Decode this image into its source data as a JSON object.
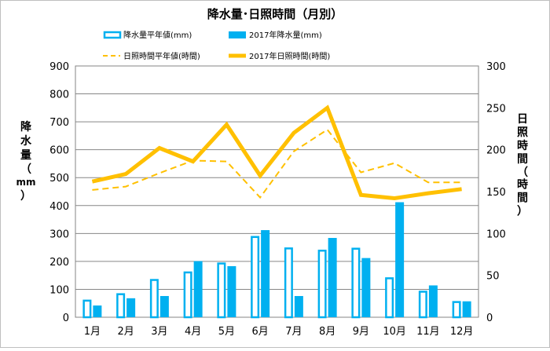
{
  "chart_data": {
    "type": "bar+line",
    "title": "降水量･日照時間（月別）",
    "categories": [
      "1月",
      "2月",
      "3月",
      "4月",
      "5月",
      "6月",
      "7月",
      "8月",
      "9月",
      "10月",
      "11月",
      "12月"
    ],
    "left_axis": {
      "label": "降水量（mm）",
      "label_parts": [
        "降",
        "水",
        "量",
        "（",
        "mm",
        "）"
      ],
      "ylim": [
        0,
        900
      ],
      "ticks": [
        0,
        100,
        200,
        300,
        400,
        500,
        600,
        700,
        800,
        900
      ]
    },
    "right_axis": {
      "label": "日照時間（時間）",
      "label_parts": [
        "日",
        "照",
        "時",
        "間",
        "（",
        "時",
        "間",
        "）"
      ],
      "ylim": [
        0,
        300
      ],
      "ticks": [
        0,
        50,
        100,
        150,
        200,
        250,
        300
      ]
    },
    "series": [
      {
        "name": "降水量平年値(mm)",
        "kind": "bar-outline",
        "axis": "left",
        "color": "#00b0f0",
        "values": [
          63,
          86,
          137,
          164,
          196,
          291,
          250,
          242,
          249,
          143,
          95,
          58
        ]
      },
      {
        "name": "2017年降水量(mm)",
        "kind": "bar",
        "axis": "left",
        "color": "#00b0f0",
        "values": [
          42,
          68,
          76,
          201,
          183,
          312,
          76,
          284,
          212,
          412,
          114,
          57
        ]
      },
      {
        "name": "日照時間平年値(時間)",
        "kind": "line-dashed",
        "axis": "right",
        "color": "#ffc000",
        "values": [
          152,
          156,
          172,
          187,
          186,
          143,
          198,
          224,
          173,
          184,
          161,
          161
        ]
      },
      {
        "name": "2017年日照時間(時間)",
        "kind": "line",
        "axis": "right",
        "color": "#ffc000",
        "values": [
          162,
          171,
          202,
          186,
          230,
          169,
          220,
          250,
          146,
          142,
          148,
          153
        ]
      }
    ],
    "legend_position": "top"
  }
}
